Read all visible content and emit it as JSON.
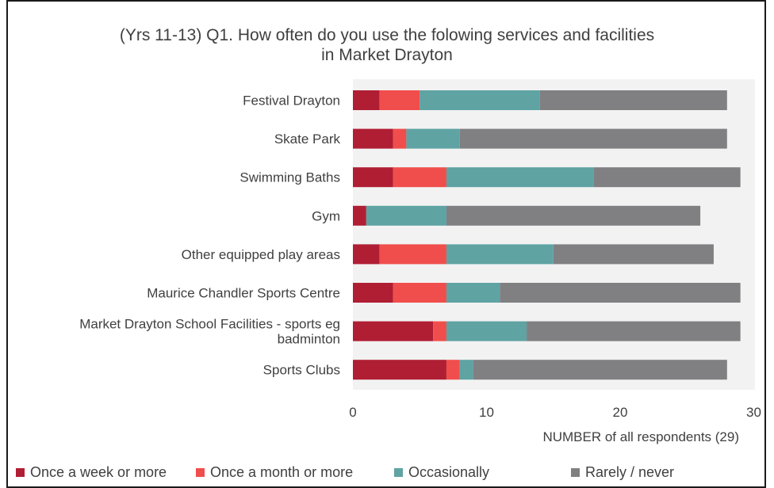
{
  "chart_data": {
    "type": "bar",
    "orientation": "horizontal",
    "stacked": true,
    "title": "(Yrs 11-13) Q1. How often do you use the folowing services and facilities in Market Drayton",
    "title_lines": [
      "(Yrs 11-13) Q1. How often do you use the folowing services and facilities",
      "in Market Drayton"
    ],
    "categories": [
      "Festival Drayton",
      "Skate Park",
      "Swimming Baths",
      "Gym",
      "Other equipped play areas",
      "Maurice Chandler Sports Centre",
      "Market Drayton School Facilities - sports eg badminton",
      "Sports Clubs"
    ],
    "category_label_lines": [
      [
        "Festival Drayton"
      ],
      [
        "Skate Park"
      ],
      [
        "Swimming Baths"
      ],
      [
        "Gym"
      ],
      [
        "Other equipped play areas"
      ],
      [
        "Maurice Chandler Sports Centre"
      ],
      [
        "Market Drayton School Facilities - sports eg",
        "badminton"
      ],
      [
        "Sports Clubs"
      ]
    ],
    "series": [
      {
        "name": "Once a week or more",
        "color": "#b01e34",
        "values": [
          2,
          3,
          3,
          1,
          2,
          3,
          6,
          7
        ]
      },
      {
        "name": "Once a month or more",
        "color": "#f04e4c",
        "values": [
          3,
          1,
          4,
          0,
          5,
          4,
          1,
          1
        ]
      },
      {
        "name": "Occasionally",
        "color": "#5fa3a3",
        "values": [
          9,
          4,
          11,
          6,
          8,
          4,
          6,
          1
        ]
      },
      {
        "name": "Rarely / never",
        "color": "#808083",
        "values": [
          14,
          20,
          11,
          19,
          12,
          18,
          16,
          19
        ]
      }
    ],
    "xlabel": "NUMBER of all respondents (29)",
    "ylabel": "",
    "xlim": [
      0,
      30
    ],
    "xticks": [
      0,
      10,
      20,
      30
    ],
    "grid": false,
    "plot_background": "#f2f2f2",
    "legend_position": "bottom"
  }
}
